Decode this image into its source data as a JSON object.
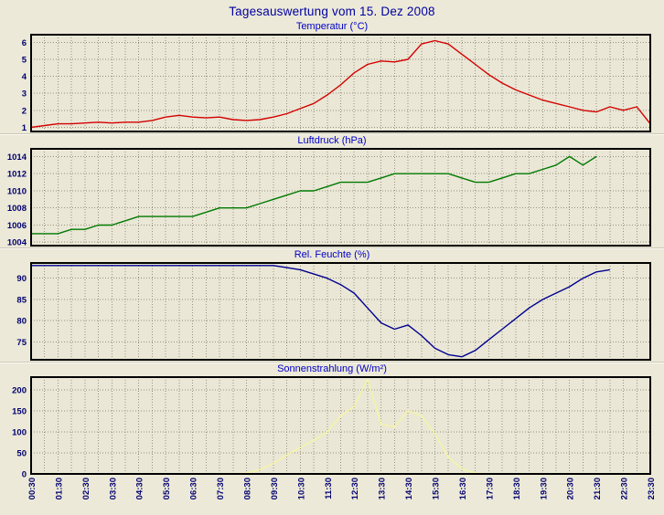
{
  "page": {
    "title": "Tagesauswertung vom 15. Dez 2008",
    "background_color": "#ece9d8",
    "plot_background_color": "#eae7d6",
    "grid_color": "#97927f",
    "frame_color": "#000000"
  },
  "colors": {
    "main_title": "#0000a0",
    "chart_title": "#0000c8",
    "tick": "#000070"
  },
  "axes": {
    "x_start": 0.5,
    "x_end": 23.5,
    "x_grid_step_hours": 0.5,
    "x_tick_step_hours": 1,
    "x_labels": [
      "00:30",
      "01:30",
      "02:30",
      "03:30",
      "04:30",
      "05:30",
      "06:30",
      "07:30",
      "08:30",
      "09:30",
      "10:30",
      "11:30",
      "12:30",
      "13:30",
      "14:30",
      "15:30",
      "16:30",
      "17:30",
      "18:30",
      "19:30",
      "20:30",
      "21:30",
      "22:30",
      "23:30"
    ]
  },
  "chart_data": [
    {
      "id": "temperatur",
      "type": "line",
      "title": "Temperatur (°C)",
      "color": "#d40000",
      "ylim": [
        0.75,
        6.45
      ],
      "yticks": [
        1,
        2,
        3,
        4,
        5,
        6
      ],
      "x_start_hours": 0.5,
      "x_step_hours": 0.5,
      "values": [
        1.0,
        1.1,
        1.2,
        1.2,
        1.25,
        1.3,
        1.25,
        1.3,
        1.3,
        1.4,
        1.6,
        1.7,
        1.6,
        1.55,
        1.6,
        1.45,
        1.4,
        1.45,
        1.6,
        1.8,
        2.1,
        2.4,
        2.9,
        3.5,
        4.2,
        4.7,
        4.9,
        4.85,
        5.0,
        5.9,
        6.1,
        5.9,
        5.3,
        4.7,
        4.1,
        3.6,
        3.2,
        2.9,
        2.6,
        2.4,
        2.2,
        2.0,
        1.9,
        2.2,
        2.0,
        2.2,
        1.2
      ]
    },
    {
      "id": "luftdruck",
      "type": "line",
      "title": "Luftdruck (hPa)",
      "color": "#007a00",
      "ylim": [
        1003.6,
        1014.9
      ],
      "yticks": [
        1004,
        1006,
        1008,
        1010,
        1012,
        1014
      ],
      "x_start_hours": 0.5,
      "x_step_hours": 0.5,
      "values": [
        1005,
        1005,
        1005,
        1005.5,
        1005.5,
        1006,
        1006,
        1006.5,
        1007,
        1007,
        1007,
        1007,
        1007,
        1007.5,
        1008,
        1008,
        1008,
        1008.5,
        1009,
        1009.5,
        1010,
        1010,
        1010.5,
        1011,
        1011,
        1011,
        1011.5,
        1012,
        1012,
        1012,
        1012,
        1012,
        1011.5,
        1011,
        1011,
        1011.5,
        1012,
        1012,
        1012.5,
        1013,
        1014,
        1013,
        1014
      ]
    },
    {
      "id": "rel-feuchte",
      "type": "line",
      "title": "Rel. Feuchte (%)",
      "color": "#000090",
      "ylim": [
        70.8,
        93.6
      ],
      "yticks": [
        75,
        80,
        85,
        90
      ],
      "x_start_hours": 0.5,
      "x_step_hours": 0.5,
      "values": [
        93,
        93,
        93,
        93,
        93,
        93,
        93,
        93,
        93,
        93,
        93,
        93,
        93,
        93,
        93,
        93,
        93,
        93,
        93,
        92.5,
        92,
        91,
        90,
        88.5,
        86.5,
        83,
        79.5,
        78,
        79,
        76.5,
        73.5,
        72,
        71.5,
        73,
        75.5,
        78,
        80.5,
        83,
        85,
        86.5,
        88,
        90,
        91.5,
        92
      ]
    },
    {
      "id": "sonnenstrahlung",
      "type": "line",
      "title": "Sonnenstrahlung (W/m²)",
      "color": "#f5f5a5",
      "ylim": [
        0,
        230
      ],
      "yticks": [
        0,
        50,
        100,
        150,
        200
      ],
      "x_start_hours": 0.5,
      "x_step_hours": 0.5,
      "values": [
        0,
        0,
        0,
        0,
        0,
        0,
        0,
        0,
        0,
        0,
        0,
        0,
        0,
        0,
        0,
        0,
        2,
        10,
        25,
        45,
        62,
        80,
        100,
        138,
        160,
        225,
        118,
        112,
        150,
        138,
        95,
        40,
        12,
        2,
        0,
        0
      ]
    }
  ]
}
